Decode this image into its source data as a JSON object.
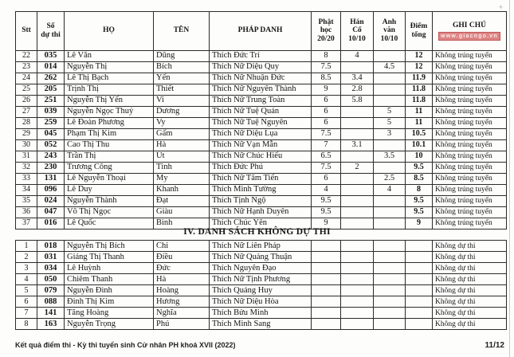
{
  "results": {
    "columns": [
      "Stt",
      "Số\ndự thi",
      "HỌ",
      "TÊN",
      "PHÁP DANH",
      "Phật\nhọc\n20/20",
      "Hán\nCổ\n10/10",
      "Anh\nvăn\n10/10",
      "Điểm\ntổng",
      "GHI CHÚ"
    ],
    "watermark": "www.giacngo.vn",
    "watermark_bg": "#dd8585",
    "rows": [
      [
        "22",
        "035",
        "Lê Văn",
        "Dũng",
        "Thích Đức Trí",
        "8",
        "4",
        "",
        "12",
        "Không trúng tuyển"
      ],
      [
        "23",
        "014",
        "Nguyễn Thị",
        "Bích",
        "Thích Nữ Diệu Quy",
        "7.5",
        "",
        "4.5",
        "12",
        "Không trúng tuyển"
      ],
      [
        "24",
        "262",
        "Lê Thị Bạch",
        "Yến",
        "Thích Nữ Nhuận Đức",
        "8.5",
        "3.4",
        "",
        "11.9",
        "Không trúng tuyển"
      ],
      [
        "25",
        "205",
        "Trịnh Thị",
        "Thiết",
        "Thích Nữ Nguyên Thành",
        "9",
        "2.8",
        "",
        "11.8",
        "Không trúng tuyển"
      ],
      [
        "26",
        "251",
        "Nguyễn Thị Yến",
        "Vi",
        "Thích Nữ Trung Toàn",
        "6",
        "5.8",
        "",
        "11.8",
        "Không trúng tuyển"
      ],
      [
        "27",
        "039",
        "Nguyễn Ngọc Thuỷ",
        "Dương",
        "Thích Nữ Tuệ Quán",
        "6",
        "",
        "5",
        "11",
        "Không trúng tuyển"
      ],
      [
        "28",
        "259",
        "Lê Đoàn Phương",
        "Vy",
        "Thích Nữ Tuệ Nguyên",
        "6",
        "",
        "5",
        "11",
        "Không trúng tuyển"
      ],
      [
        "29",
        "045",
        "Phạm Thị Kim",
        "Gấm",
        "Thích Nữ Diệu Lụa",
        "7.5",
        "",
        "3",
        "10.5",
        "Không trúng tuyển"
      ],
      [
        "30",
        "052",
        "Cao Thị Thu",
        "Hà",
        "Thích Nữ Vạn Mẫn",
        "7",
        "3.1",
        "",
        "10.1",
        "Không trúng tuyển"
      ],
      [
        "31",
        "243",
        "Trần Thị",
        "Út",
        "Thích Nữ Chúc Hiếu",
        "6.5",
        "",
        "3.5",
        "10",
        "Không trúng tuyển"
      ],
      [
        "32",
        "230",
        "Trương Công",
        "Tình",
        "Thích Đức Phú",
        "7.5",
        "2",
        "",
        "9.5",
        "Không trúng tuyển"
      ],
      [
        "33",
        "131",
        "Lê Nguyễn Thoại",
        "My",
        "Thích Nữ Tâm Tiến",
        "6",
        "",
        "2.5",
        "8.5",
        "Không trúng tuyển"
      ],
      [
        "34",
        "096",
        "Lê Duy",
        "Khanh",
        "Thích Minh Tường",
        "4",
        "",
        "4",
        "8",
        "Không trúng tuyển"
      ],
      [
        "35",
        "024",
        "Nguyễn Thành",
        "Đạt",
        "Thích Tịnh Ngộ",
        "9.5",
        "",
        "",
        "9.5",
        "Không trúng tuyển"
      ],
      [
        "36",
        "047",
        "Võ Thị Ngọc",
        "Giàu",
        "Thích Nữ Hạnh Duyên",
        "9.5",
        "",
        "",
        "9.5",
        "Không trúng tuyển"
      ],
      [
        "37",
        "016",
        "Lê Quốc",
        "Bình",
        "Thích Chúc Yên",
        "9",
        "",
        "",
        "9",
        "Không trúng tuyển"
      ]
    ]
  },
  "section2": {
    "title": "IV. DANH SÁCH KHÔNG DỰ THI",
    "rows": [
      [
        "1",
        "018",
        "Nguyễn Thị Bích",
        "Chi",
        "Thích Nữ Liên Pháp",
        "",
        "",
        "",
        "",
        "Không dự thi"
      ],
      [
        "2",
        "031",
        "Giảng Thị Thanh",
        "Điều",
        "Thích Nữ Quảng Thuận",
        "",
        "",
        "",
        "",
        "Không dự thi"
      ],
      [
        "3",
        "034",
        "Lê Huỳnh",
        "Đức",
        "Thích Nguyên Đạo",
        "",
        "",
        "",
        "",
        "Không dự thi"
      ],
      [
        "4",
        "050",
        "Chiêm Thanh",
        "Hà",
        "Thích Nữ Tịnh Phương",
        "",
        "",
        "",
        "",
        "Không dự thi"
      ],
      [
        "5",
        "079",
        "Nguyễn Đình",
        "Hoàng",
        "Thích Quảng Huy",
        "",
        "",
        "",
        "",
        "Không dự thi"
      ],
      [
        "6",
        "088",
        "Đinh Thị Kim",
        "Hương",
        "Thích Nữ Diệu Hòa",
        "",
        "",
        "",
        "",
        "Không dự thi"
      ],
      [
        "7",
        "141",
        "Tăng Hoàng",
        "Nghĩa",
        "Thích Bửu Minh",
        "",
        "",
        "",
        "",
        "Không dự thi"
      ],
      [
        "8",
        "163",
        "Nguyễn Trọng",
        "Phú",
        "Thích Minh Sang",
        "",
        "",
        "",
        "",
        "Không dự thi"
      ]
    ]
  },
  "footer": {
    "left": "Kết quả điểm thi - Kỳ thi tuyển sinh Cử nhân PH khoá XVII (2022)",
    "page": "11/12"
  }
}
